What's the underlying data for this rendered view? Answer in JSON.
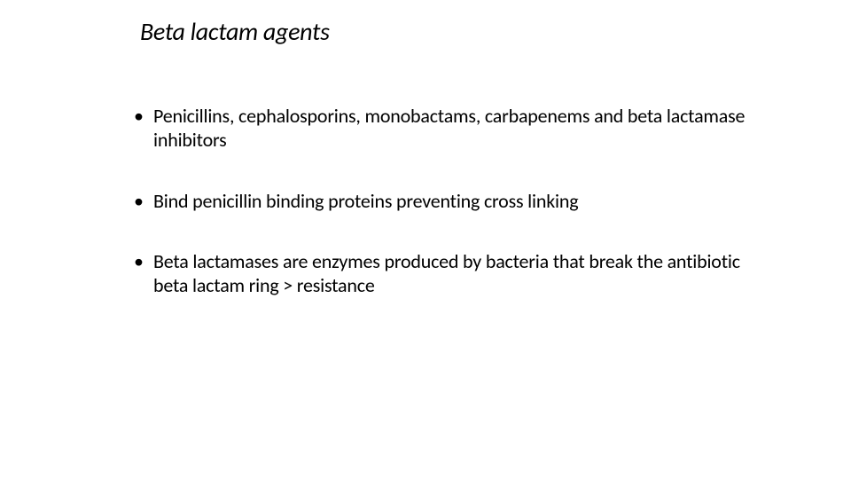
{
  "title_fontsize": 28,
  "body_fontsize": 22,
  "text_color": "#000000",
  "background_color": "#ffffff",
  "slide": {
    "title": "Beta lactam agents",
    "bullets": [
      "Penicillins, cephalosporins, monobactams, carbapenems and beta lactamase inhibitors",
      "Bind penicillin binding proteins preventing cross linking",
      "Beta lactamases are enzymes produced by bacteria that break the antibiotic beta lactam ring > resistance"
    ]
  }
}
